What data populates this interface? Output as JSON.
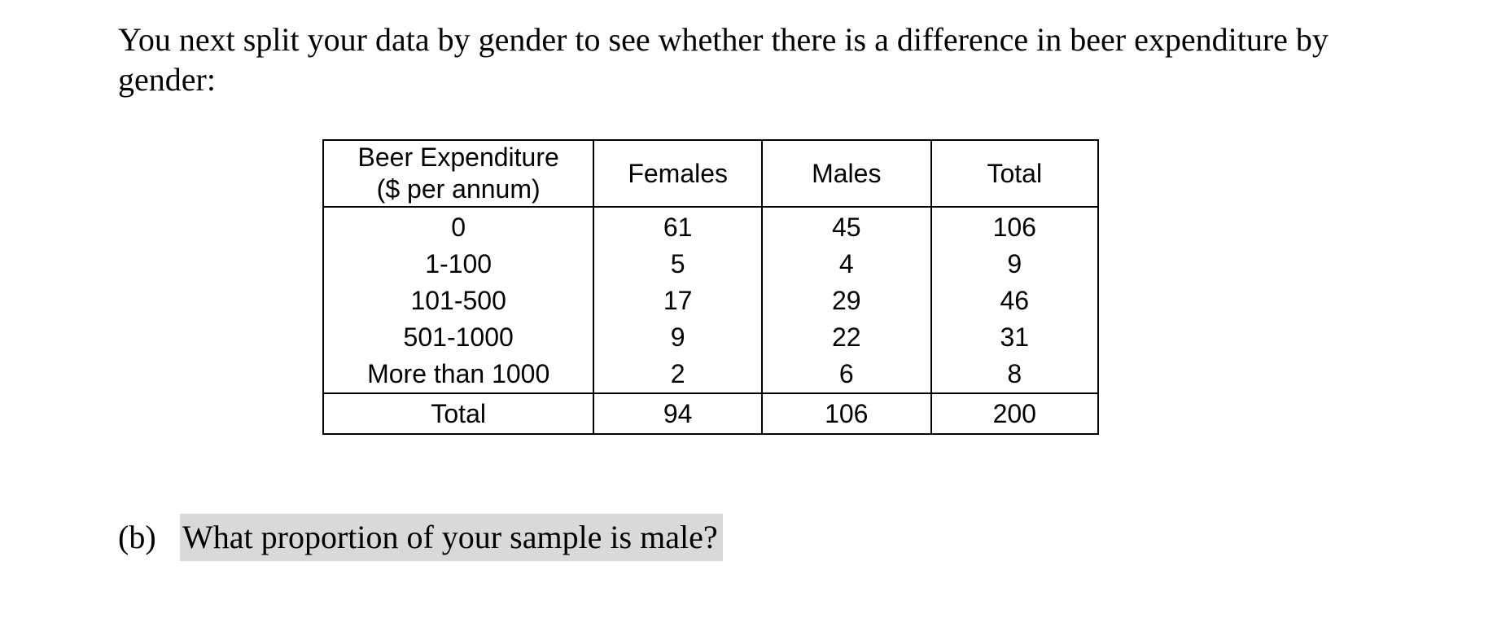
{
  "intro": {
    "text": "You next split your data by gender to see whether there is a difference in beer expenditure by gender:"
  },
  "table": {
    "header": {
      "category_line1": "Beer Expenditure",
      "category_line2": "($ per annum)",
      "females": "Females",
      "males": "Males",
      "total": "Total"
    },
    "rows": [
      {
        "category": "0",
        "females": "61",
        "males": "45",
        "total": "106"
      },
      {
        "category": "1-100",
        "females": "5",
        "males": "4",
        "total": "9"
      },
      {
        "category": "101-500",
        "females": "17",
        "males": "29",
        "total": "46"
      },
      {
        "category": "501-1000",
        "females": "9",
        "males": "22",
        "total": "31"
      },
      {
        "category": "More than 1000",
        "females": "2",
        "males": "6",
        "total": "8"
      }
    ],
    "totals": {
      "category": "Total",
      "females": "94",
      "males": "106",
      "total": "200"
    }
  },
  "question": {
    "number": "(b)",
    "text": "What proportion of your sample is male?"
  }
}
